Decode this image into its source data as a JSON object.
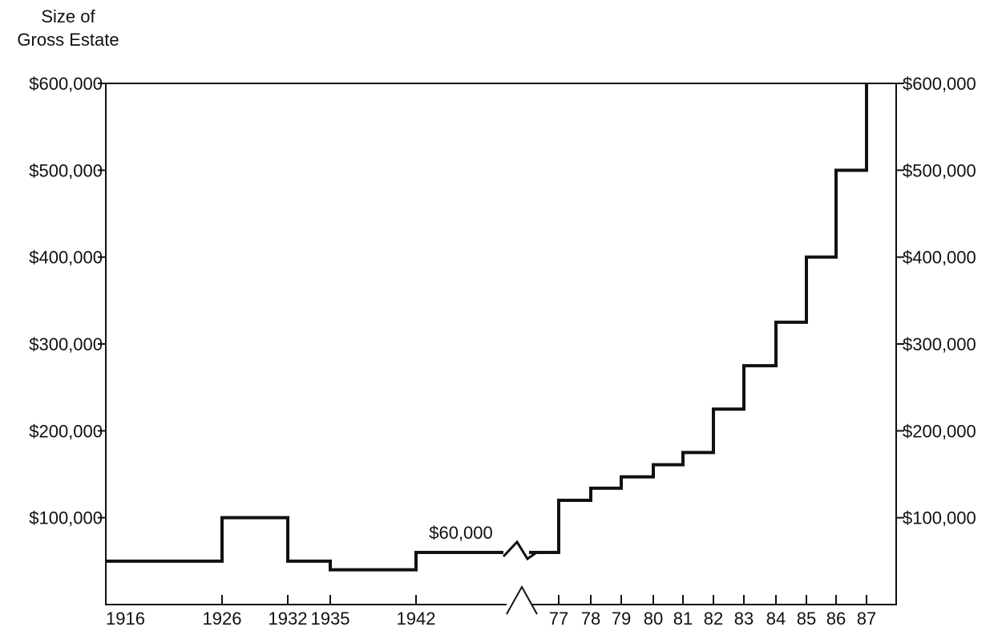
{
  "chart_data": {
    "type": "line",
    "title": "",
    "ylabel_lines": [
      "Size of",
      "Gross Estate"
    ],
    "ylim": [
      0,
      600000
    ],
    "yticks": [
      {
        "value": 100000,
        "label": "$100,000"
      },
      {
        "value": 200000,
        "label": "$200,000"
      },
      {
        "value": 300000,
        "label": "$300,000"
      },
      {
        "value": 400000,
        "label": "$400,000"
      },
      {
        "value": 500000,
        "label": "$500,000"
      },
      {
        "value": 600000,
        "label": "$600,000"
      }
    ],
    "xticks_left": [
      {
        "year": 1916,
        "label": "1916"
      },
      {
        "year": 1926,
        "label": "1926"
      },
      {
        "year": 1932,
        "label": "1932"
      },
      {
        "year": 1935,
        "label": "1935"
      },
      {
        "year": 1942,
        "label": "1942"
      }
    ],
    "xticks_right": [
      {
        "year": 1977,
        "label": "77"
      },
      {
        "year": 1978,
        "label": "78"
      },
      {
        "year": 1979,
        "label": "79"
      },
      {
        "year": 1980,
        "label": "80"
      },
      {
        "year": 1981,
        "label": "81"
      },
      {
        "year": 1982,
        "label": "82"
      },
      {
        "year": 1983,
        "label": "83"
      },
      {
        "year": 1984,
        "label": "84"
      },
      {
        "year": 1985,
        "label": "85"
      },
      {
        "year": 1986,
        "label": "86"
      },
      {
        "year": 1987,
        "label": "87"
      }
    ],
    "series": [
      {
        "style": "step",
        "values": [
          {
            "year": 1916,
            "value": 50000
          },
          {
            "year": 1926,
            "value": 100000
          },
          {
            "year": 1932,
            "value": 50000
          },
          {
            "year": 1935,
            "value": 40000
          },
          {
            "year": 1942,
            "value": 60000
          },
          {
            "year": 1977,
            "value": 120000
          },
          {
            "year": 1978,
            "value": 134000
          },
          {
            "year": 1979,
            "value": 147000
          },
          {
            "year": 1980,
            "value": 161000
          },
          {
            "year": 1981,
            "value": 175000
          },
          {
            "year": 1982,
            "value": 225000
          },
          {
            "year": 1983,
            "value": 275000
          },
          {
            "year": 1984,
            "value": 325000
          },
          {
            "year": 1985,
            "value": 400000
          },
          {
            "year": 1986,
            "value": 500000
          },
          {
            "year": 1987,
            "value": 600000
          }
        ]
      }
    ],
    "annotations": [
      {
        "text": "$60,000",
        "year": 1942,
        "value": 60000
      }
    ],
    "axis_break": true,
    "grid": false
  }
}
